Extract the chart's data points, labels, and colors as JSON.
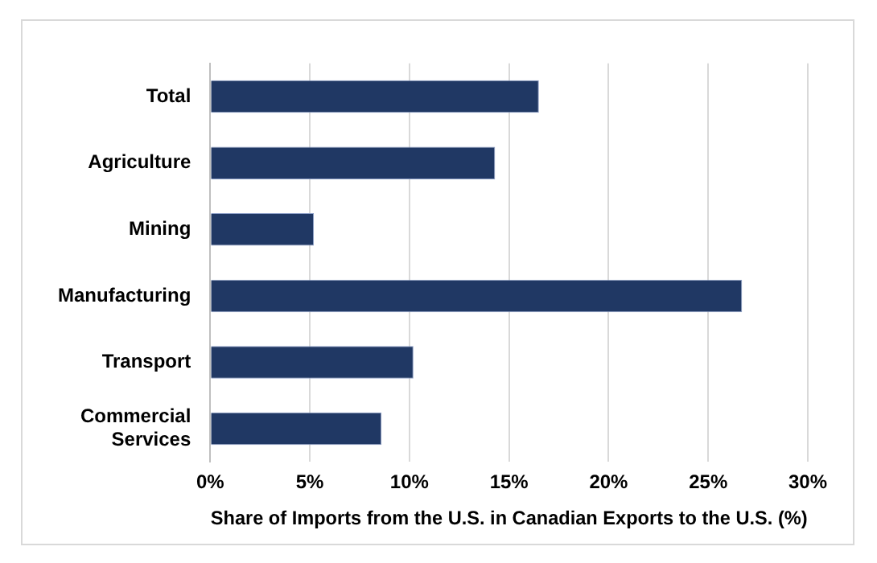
{
  "chart_data": {
    "type": "bar",
    "orientation": "horizontal",
    "xlabel": "Share of Imports from the U.S. in Canadian Exports to the U.S. (%)",
    "categories": [
      "Total",
      "Agriculture",
      "Mining",
      "Manufacturing",
      "Transport",
      "Commercial Services"
    ],
    "values": [
      16.5,
      14.3,
      5.2,
      26.7,
      10.2,
      8.6
    ],
    "color": "#203864",
    "xlim": [
      0,
      30
    ],
    "xticks": [
      {
        "value": 0,
        "label": "0%"
      },
      {
        "value": 5,
        "label": "5%"
      },
      {
        "value": 10,
        "label": "10%"
      },
      {
        "value": 15,
        "label": "15%"
      },
      {
        "value": 20,
        "label": "20%"
      },
      {
        "value": 25,
        "label": "25%"
      },
      {
        "value": 30,
        "label": "30%"
      }
    ],
    "grid": "x",
    "legend": false
  }
}
